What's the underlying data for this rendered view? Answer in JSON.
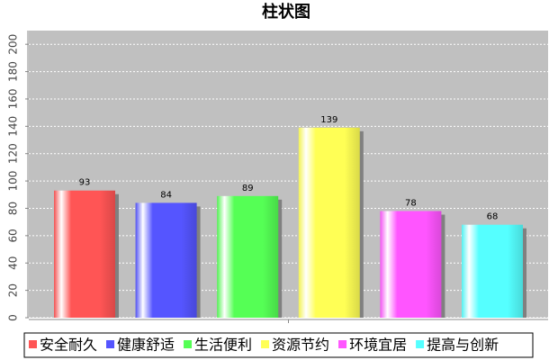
{
  "chart_data": {
    "type": "bar",
    "title": "柱状图",
    "categories": [
      "安全耐久",
      "健康舒适",
      "生活便利",
      "资源节约",
      "环境宜居",
      "提高与创新"
    ],
    "values": [
      93,
      84,
      89,
      139,
      78,
      68
    ],
    "colors": [
      "#ff5555",
      "#5555ff",
      "#55ff55",
      "#ffff55",
      "#ff55ff",
      "#55ffff"
    ],
    "ylim": [
      0,
      210
    ],
    "yticks": [
      0,
      20,
      40,
      60,
      80,
      100,
      120,
      140,
      160,
      180,
      200
    ],
    "grid": true,
    "legend": "bottom"
  }
}
